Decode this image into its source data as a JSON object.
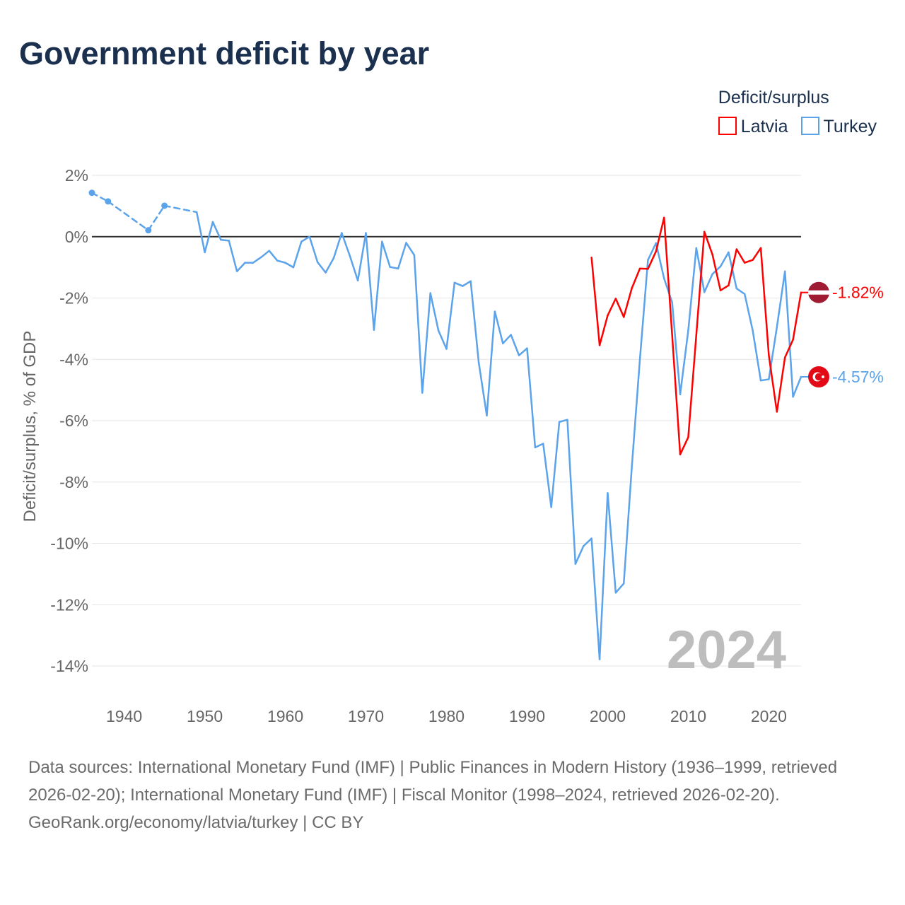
{
  "title": "Government deficit by year",
  "legend": {
    "title": "Deficit/surplus",
    "items": [
      {
        "name": "Latvia",
        "color": "#ff0000"
      },
      {
        "name": "Turkey",
        "color": "#5ba3ea"
      }
    ]
  },
  "footer": {
    "sources": "Data sources: International Monetary Fund (IMF) | Public Finances in Modern History (1936–1999, retrieved 2026-02-20); International Monetary Fund (IMF) | Fiscal Monitor (1998–2024, retrieved 2026-02-20).",
    "credit": "GeoRank.org/economy/latvia/turkey | CC BY"
  },
  "chart_data": {
    "type": "line",
    "title": "Government deficit by year",
    "xlabel": "",
    "ylabel": "Deficit/surplus, % of GDP",
    "xlim": [
      1936,
      2024
    ],
    "ylim": [
      -14,
      2
    ],
    "xticks": [
      1940,
      1950,
      1960,
      1970,
      1980,
      1990,
      2000,
      2010,
      2020
    ],
    "xtick_labels": [
      "1940",
      "1950",
      "1960",
      "1970",
      "1980",
      "1990",
      "2000",
      "2010",
      "2020"
    ],
    "yticks": [
      2,
      0,
      -2,
      -4,
      -6,
      -8,
      -10,
      -12,
      -14
    ],
    "ytick_labels": [
      "2%",
      "0%",
      "-2%",
      "-4%",
      "-6%",
      "-8%",
      "-10%",
      "-12%",
      "-14%"
    ],
    "grid": true,
    "legend_position": "top-right",
    "year_watermark": "2024",
    "series": [
      {
        "name": "Latvia",
        "color": "#ff0000",
        "end_label": "-1.82%",
        "flag": "latvia",
        "points": [
          [
            1998,
            -0.68
          ],
          [
            1999,
            -3.54
          ],
          [
            2000,
            -2.57
          ],
          [
            2001,
            -2.02
          ],
          [
            2002,
            -2.62
          ],
          [
            2003,
            -1.68
          ],
          [
            2004,
            -1.04
          ],
          [
            2005,
            -1.05
          ],
          [
            2006,
            -0.48
          ],
          [
            2007,
            0.62
          ],
          [
            2008,
            -3.2
          ],
          [
            2009,
            -7.1
          ],
          [
            2010,
            -6.54
          ],
          [
            2011,
            -3.2
          ],
          [
            2012,
            0.16
          ],
          [
            2013,
            -0.58
          ],
          [
            2014,
            -1.75
          ],
          [
            2015,
            -1.59
          ],
          [
            2016,
            -0.41
          ],
          [
            2017,
            -0.85
          ],
          [
            2018,
            -0.76
          ],
          [
            2019,
            -0.37
          ],
          [
            2020,
            -3.87
          ],
          [
            2021,
            -5.71
          ],
          [
            2022,
            -3.94
          ],
          [
            2023,
            -3.36
          ],
          [
            2024,
            -1.82
          ]
        ]
      },
      {
        "name": "Turkey",
        "color": "#5ba3ea",
        "end_label": "-4.57%",
        "flag": "turkey",
        "points": [
          [
            1936,
            1.43
          ],
          [
            1938,
            1.15
          ],
          [
            1943,
            0.21
          ],
          [
            1945,
            1.01
          ],
          [
            1949,
            0.8
          ],
          [
            1950,
            -0.51
          ],
          [
            1951,
            0.48
          ],
          [
            1952,
            -0.1
          ],
          [
            1953,
            -0.13
          ],
          [
            1954,
            -1.13
          ],
          [
            1955,
            -0.85
          ],
          [
            1956,
            -0.85
          ],
          [
            1957,
            -0.67
          ],
          [
            1958,
            -0.46
          ],
          [
            1959,
            -0.78
          ],
          [
            1960,
            -0.85
          ],
          [
            1961,
            -1.0
          ],
          [
            1962,
            -0.16
          ],
          [
            1963,
            0.0
          ],
          [
            1964,
            -0.83
          ],
          [
            1965,
            -1.17
          ],
          [
            1966,
            -0.7
          ],
          [
            1967,
            0.12
          ],
          [
            1968,
            -0.62
          ],
          [
            1969,
            -1.43
          ],
          [
            1970,
            0.12
          ],
          [
            1971,
            -3.04
          ],
          [
            1972,
            -0.16
          ],
          [
            1973,
            -0.99
          ],
          [
            1974,
            -1.04
          ],
          [
            1975,
            -0.2
          ],
          [
            1976,
            -0.6
          ],
          [
            1977,
            -5.09
          ],
          [
            1978,
            -1.84
          ],
          [
            1979,
            -3.06
          ],
          [
            1980,
            -3.66
          ],
          [
            1981,
            -1.5
          ],
          [
            1982,
            -1.61
          ],
          [
            1983,
            -1.45
          ],
          [
            1984,
            -4.1
          ],
          [
            1985,
            -5.83
          ],
          [
            1986,
            -2.44
          ],
          [
            1987,
            -3.48
          ],
          [
            1988,
            -3.2
          ],
          [
            1989,
            -3.87
          ],
          [
            1990,
            -3.64
          ],
          [
            1991,
            -6.87
          ],
          [
            1992,
            -6.75
          ],
          [
            1993,
            -8.82
          ],
          [
            1994,
            -6.04
          ],
          [
            1995,
            -5.97
          ],
          [
            1996,
            -10.67
          ],
          [
            1997,
            -10.09
          ],
          [
            1998,
            -9.84
          ],
          [
            1999,
            -13.78
          ],
          [
            2000,
            -8.36
          ],
          [
            2001,
            -11.61
          ],
          [
            2002,
            -11.31
          ],
          [
            2003,
            -7.5
          ],
          [
            2004,
            -4.0
          ],
          [
            2005,
            -0.76
          ],
          [
            2006,
            -0.21
          ],
          [
            2007,
            -1.36
          ],
          [
            2008,
            -2.14
          ],
          [
            2009,
            -5.14
          ],
          [
            2010,
            -3.06
          ],
          [
            2011,
            -0.37
          ],
          [
            2012,
            -1.81
          ],
          [
            2013,
            -1.22
          ],
          [
            2014,
            -0.97
          ],
          [
            2015,
            -0.51
          ],
          [
            2016,
            -1.69
          ],
          [
            2017,
            -1.87
          ],
          [
            2018,
            -3.06
          ],
          [
            2019,
            -4.69
          ],
          [
            2020,
            -4.65
          ],
          [
            2021,
            -2.95
          ],
          [
            2022,
            -1.13
          ],
          [
            2023,
            -5.22
          ],
          [
            2024,
            -4.57
          ]
        ]
      }
    ]
  }
}
